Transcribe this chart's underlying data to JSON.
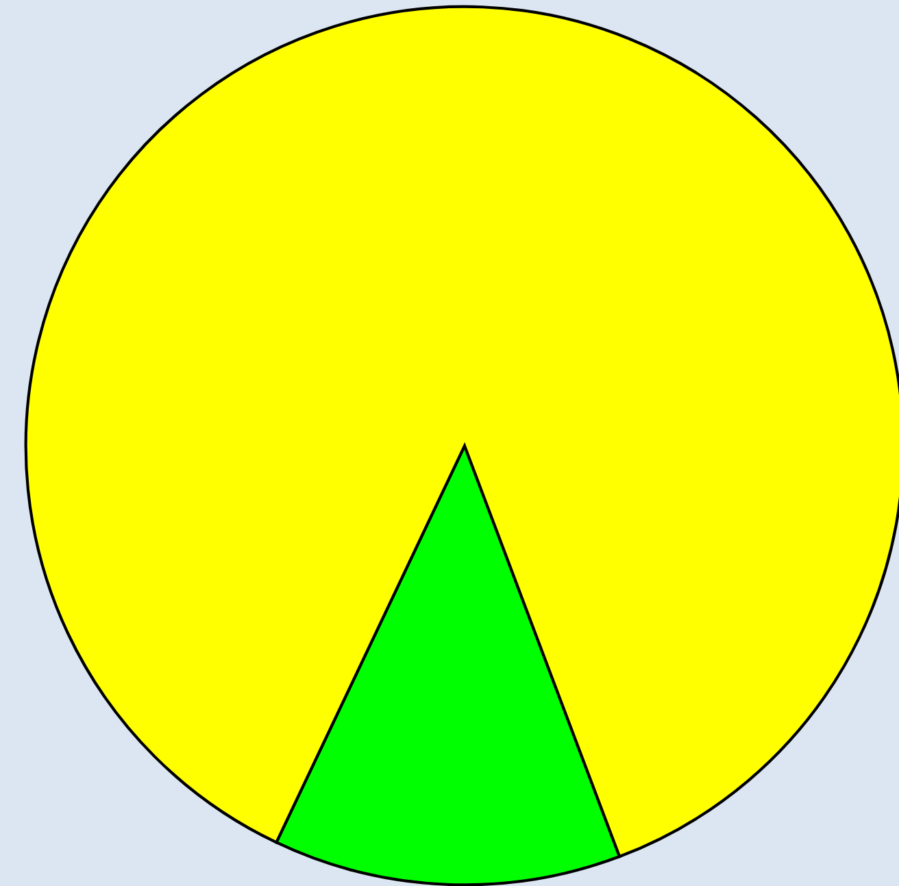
{
  "chart_data": {
    "type": "pie",
    "categories": [
      null,
      null
    ],
    "values": [
      12.8,
      87.2
    ],
    "colors": [
      "#00ff00",
      "#ffff00"
    ]
  }
}
